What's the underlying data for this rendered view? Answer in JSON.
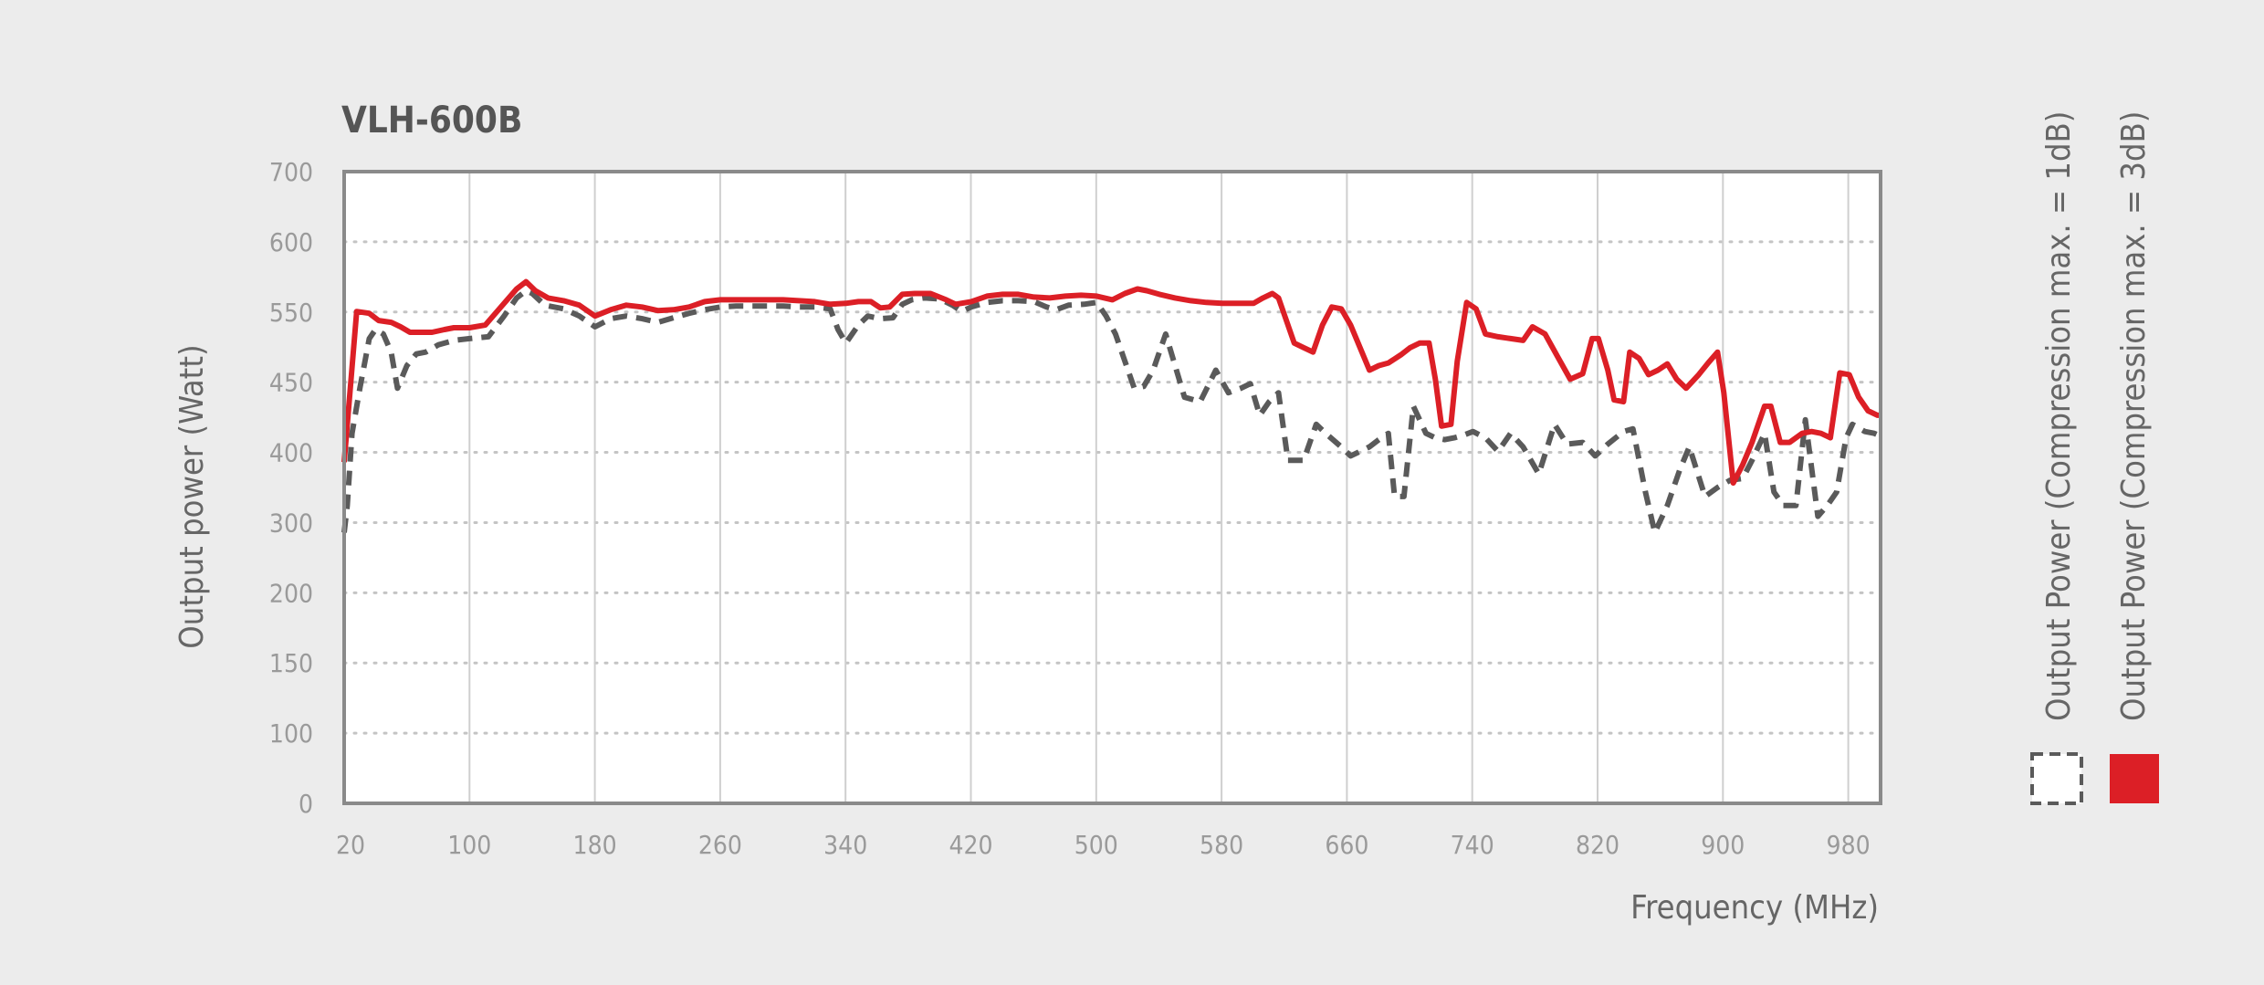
{
  "chart_data": {
    "type": "line",
    "title": "VLH-600B",
    "xlabel": "Frequency (MHz)",
    "ylabel": "Output power (Watt)",
    "x_ticks": [
      "20",
      "100",
      "180",
      "260",
      "340",
      "420",
      "500",
      "580",
      "660",
      "740",
      "820",
      "900",
      "980"
    ],
    "y_ticks": [
      "0",
      "100",
      "150",
      "200",
      "300",
      "400",
      "450",
      "550",
      "600",
      "700"
    ],
    "xlim": [
      20,
      1000
    ],
    "ylim": [
      0,
      700
    ],
    "grid": {
      "horizontal": "dotted",
      "vertical": "solid"
    },
    "legend_placement": "right",
    "colors": {
      "series_3db": "#dc1f26",
      "series_1db": "#5a5a5a"
    },
    "series": [
      {
        "name": "Output Power (Compression max. = 1dB)",
        "style": "dashed",
        "points": [
          [
            20,
            300
          ],
          [
            22,
            330
          ],
          [
            25,
            410
          ],
          [
            30,
            460
          ],
          [
            36,
            515
          ],
          [
            40,
            525
          ],
          [
            45,
            520
          ],
          [
            50,
            500
          ],
          [
            54,
            460
          ],
          [
            60,
            485
          ],
          [
            66,
            498
          ],
          [
            72,
            500
          ],
          [
            80,
            508
          ],
          [
            90,
            513
          ],
          [
            100,
            515
          ],
          [
            112,
            517
          ],
          [
            122,
            540
          ],
          [
            130,
            560
          ],
          [
            136,
            568
          ],
          [
            140,
            565
          ],
          [
            148,
            552
          ],
          [
            160,
            548
          ],
          [
            170,
            540
          ],
          [
            180,
            528
          ],
          [
            190,
            537
          ],
          [
            200,
            540
          ],
          [
            210,
            537
          ],
          [
            220,
            533
          ],
          [
            230,
            538
          ],
          [
            240,
            543
          ],
          [
            250,
            547
          ],
          [
            260,
            550
          ],
          [
            270,
            551
          ],
          [
            280,
            551
          ],
          [
            290,
            551
          ],
          [
            300,
            551
          ],
          [
            310,
            550
          ],
          [
            320,
            550
          ],
          [
            330,
            548
          ],
          [
            335,
            525
          ],
          [
            340,
            510
          ],
          [
            348,
            530
          ],
          [
            354,
            540
          ],
          [
            362,
            537
          ],
          [
            370,
            538
          ],
          [
            376,
            553
          ],
          [
            382,
            558
          ],
          [
            390,
            560
          ],
          [
            400,
            559
          ],
          [
            408,
            552
          ],
          [
            414,
            545
          ],
          [
            420,
            550
          ],
          [
            430,
            555
          ],
          [
            440,
            557
          ],
          [
            450,
            557
          ],
          [
            460,
            556
          ],
          [
            468,
            550
          ],
          [
            474,
            547
          ],
          [
            482,
            552
          ],
          [
            492,
            553
          ],
          [
            500,
            555
          ],
          [
            506,
            540
          ],
          [
            512,
            520
          ],
          [
            518,
            490
          ],
          [
            524,
            460
          ],
          [
            530,
            462
          ],
          [
            536,
            480
          ],
          [
            540,
            500
          ],
          [
            544,
            520
          ],
          [
            550,
            485
          ],
          [
            556,
            450
          ],
          [
            566,
            445
          ],
          [
            576,
            480
          ],
          [
            584,
            455
          ],
          [
            592,
            460
          ],
          [
            598,
            465
          ],
          [
            604,
            430
          ],
          [
            610,
            445
          ],
          [
            616,
            455
          ],
          [
            622,
            380
          ],
          [
            632,
            380
          ],
          [
            640,
            420
          ],
          [
            646,
            410
          ],
          [
            656,
            395
          ],
          [
            662,
            385
          ],
          [
            668,
            390
          ],
          [
            674,
            395
          ],
          [
            680,
            403
          ],
          [
            686,
            410
          ],
          [
            690,
            340
          ],
          [
            696,
            340
          ],
          [
            702,
            440
          ],
          [
            710,
            410
          ],
          [
            716,
            405
          ],
          [
            722,
            403
          ],
          [
            728,
            405
          ],
          [
            734,
            408
          ],
          [
            740,
            412
          ],
          [
            748,
            405
          ],
          [
            756,
            390
          ],
          [
            764,
            410
          ],
          [
            772,
            395
          ],
          [
            782,
            365
          ],
          [
            792,
            420
          ],
          [
            800,
            398
          ],
          [
            810,
            400
          ],
          [
            818,
            385
          ],
          [
            826,
            398
          ],
          [
            836,
            412
          ],
          [
            842,
            415
          ],
          [
            850,
            345
          ],
          [
            856,
            300
          ],
          [
            864,
            330
          ],
          [
            872,
            370
          ],
          [
            878,
            395
          ],
          [
            888,
            340
          ],
          [
            896,
            350
          ],
          [
            904,
            358
          ],
          [
            912,
            360
          ],
          [
            918,
            380
          ],
          [
            926,
            410
          ],
          [
            932,
            345
          ],
          [
            938,
            330
          ],
          [
            946,
            330
          ],
          [
            952,
            425
          ],
          [
            960,
            318
          ],
          [
            966,
            330
          ],
          [
            972,
            345
          ],
          [
            978,
            405
          ],
          [
            982,
            420
          ],
          [
            990,
            412
          ],
          [
            996,
            410
          ],
          [
            1000,
            407
          ]
        ]
      },
      {
        "name": "Output Power (Compression max. = 3dB)",
        "style": "solid",
        "points": [
          [
            20,
            378
          ],
          [
            28,
            545
          ],
          [
            36,
            543
          ],
          [
            42,
            535
          ],
          [
            50,
            533
          ],
          [
            56,
            528
          ],
          [
            62,
            522
          ],
          [
            68,
            522
          ],
          [
            76,
            522
          ],
          [
            84,
            525
          ],
          [
            90,
            527
          ],
          [
            100,
            527
          ],
          [
            110,
            530
          ],
          [
            120,
            550
          ],
          [
            130,
            570
          ],
          [
            136,
            578
          ],
          [
            142,
            568
          ],
          [
            150,
            560
          ],
          [
            160,
            557
          ],
          [
            170,
            552
          ],
          [
            180,
            540
          ],
          [
            190,
            547
          ],
          [
            200,
            552
          ],
          [
            210,
            550
          ],
          [
            220,
            546
          ],
          [
            230,
            547
          ],
          [
            240,
            550
          ],
          [
            250,
            556
          ],
          [
            260,
            558
          ],
          [
            270,
            558
          ],
          [
            280,
            558
          ],
          [
            290,
            558
          ],
          [
            300,
            558
          ],
          [
            310,
            557
          ],
          [
            320,
            556
          ],
          [
            330,
            553
          ],
          [
            340,
            554
          ],
          [
            348,
            556
          ],
          [
            356,
            556
          ],
          [
            362,
            549
          ],
          [
            368,
            550
          ],
          [
            376,
            564
          ],
          [
            384,
            565
          ],
          [
            394,
            565
          ],
          [
            404,
            558
          ],
          [
            410,
            553
          ],
          [
            420,
            556
          ],
          [
            430,
            562
          ],
          [
            440,
            564
          ],
          [
            450,
            564
          ],
          [
            460,
            561
          ],
          [
            470,
            560
          ],
          [
            480,
            562
          ],
          [
            490,
            563
          ],
          [
            500,
            562
          ],
          [
            510,
            558
          ],
          [
            518,
            565
          ],
          [
            526,
            570
          ],
          [
            532,
            568
          ],
          [
            540,
            564
          ],
          [
            550,
            560
          ],
          [
            560,
            557
          ],
          [
            570,
            555
          ],
          [
            580,
            554
          ],
          [
            590,
            554
          ],
          [
            600,
            554
          ],
          [
            606,
            560
          ],
          [
            612,
            565
          ],
          [
            616,
            560
          ],
          [
            620,
            540
          ],
          [
            626,
            510
          ],
          [
            632,
            505
          ],
          [
            638,
            500
          ],
          [
            644,
            530
          ],
          [
            650,
            550
          ],
          [
            656,
            548
          ],
          [
            662,
            530
          ],
          [
            668,
            505
          ],
          [
            674,
            480
          ],
          [
            680,
            485
          ],
          [
            686,
            488
          ],
          [
            694,
            497
          ],
          [
            700,
            505
          ],
          [
            706,
            510
          ],
          [
            712,
            510
          ],
          [
            716,
            470
          ],
          [
            720,
            418
          ],
          [
            726,
            420
          ],
          [
            730,
            490
          ],
          [
            736,
            555
          ],
          [
            742,
            548
          ],
          [
            748,
            520
          ],
          [
            756,
            517
          ],
          [
            764,
            515
          ],
          [
            772,
            513
          ],
          [
            778,
            528
          ],
          [
            786,
            520
          ],
          [
            794,
            495
          ],
          [
            802,
            470
          ],
          [
            810,
            476
          ],
          [
            816,
            515
          ],
          [
            820,
            515
          ],
          [
            826,
            480
          ],
          [
            830,
            447
          ],
          [
            836,
            445
          ],
          [
            840,
            500
          ],
          [
            846,
            493
          ],
          [
            852,
            475
          ],
          [
            858,
            480
          ],
          [
            864,
            487
          ],
          [
            870,
            470
          ],
          [
            876,
            460
          ],
          [
            884,
            475
          ],
          [
            890,
            488
          ],
          [
            896,
            500
          ],
          [
            900,
            455
          ],
          [
            906,
            355
          ],
          [
            912,
            375
          ],
          [
            918,
            400
          ],
          [
            926,
            440
          ],
          [
            930,
            440
          ],
          [
            936,
            400
          ],
          [
            942,
            400
          ],
          [
            950,
            410
          ],
          [
            956,
            412
          ],
          [
            962,
            410
          ],
          [
            968,
            405
          ],
          [
            974,
            477
          ],
          [
            980,
            475
          ],
          [
            986,
            450
          ],
          [
            992,
            435
          ],
          [
            998,
            430
          ],
          [
            1000,
            430
          ]
        ]
      }
    ]
  }
}
